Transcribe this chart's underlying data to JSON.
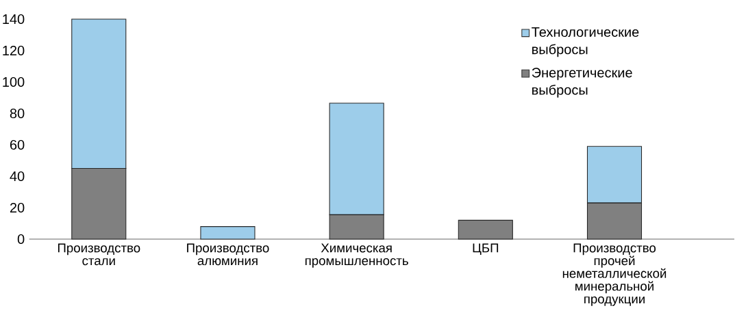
{
  "chart_data": {
    "type": "bar",
    "stacked": true,
    "categories": [
      "Производство стали",
      "Производство алюминия",
      "Химическая промышленность",
      "ЦБП",
      "Производство прочей неметаллической минеральной продукции"
    ],
    "series": [
      {
        "name": "Энергетические выбросы",
        "color": "#808080",
        "values": [
          45,
          0,
          15.5,
          12,
          23
        ]
      },
      {
        "name": "Технологические выбросы",
        "color": "#9dcdea",
        "values": [
          95,
          8,
          71,
          0,
          36
        ]
      }
    ],
    "ylim": [
      0,
      140
    ],
    "yticks": [
      0,
      20,
      40,
      60,
      80,
      100,
      120,
      140
    ],
    "legend": "top right"
  }
}
